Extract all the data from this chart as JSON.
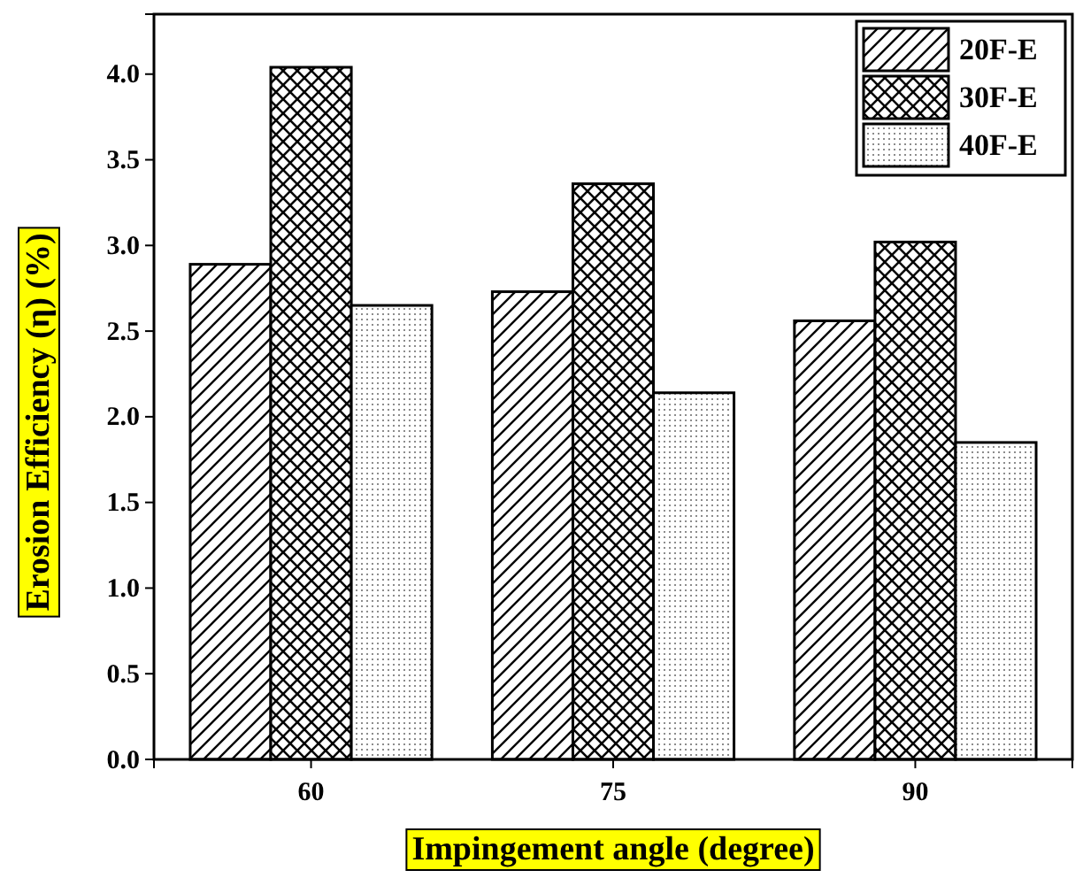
{
  "chart_data": {
    "type": "bar",
    "xlabel": "Impingement angle (degree)",
    "ylabel": "Erosion Efficiency (η) (%)",
    "categories": [
      "60",
      "75",
      "90"
    ],
    "series": [
      {
        "name": "20F-E",
        "color": "#000000",
        "values": [
          2.89,
          2.73,
          2.56
        ]
      },
      {
        "name": "30F-E",
        "color": "#000000",
        "values": [
          4.04,
          3.36,
          3.02
        ]
      },
      {
        "name": "40F-E",
        "color": "#000000",
        "values": [
          2.65,
          2.14,
          1.85
        ]
      }
    ],
    "ylim": [
      0,
      4.35
    ],
    "yticks": [
      {
        "value": 0,
        "label": "0.0"
      },
      {
        "value": 0.5,
        "label": "0.5"
      },
      {
        "value": 1,
        "label": "1.0"
      },
      {
        "value": 1.5,
        "label": "1.5"
      },
      {
        "value": 2,
        "label": "2.0"
      },
      {
        "value": 2.5,
        "label": "2.5"
      },
      {
        "value": 3,
        "label": "3.0"
      },
      {
        "value": 3.5,
        "label": "3.5"
      },
      {
        "value": 4,
        "label": "4.0"
      }
    ],
    "grid": false,
    "legend": "top right"
  }
}
